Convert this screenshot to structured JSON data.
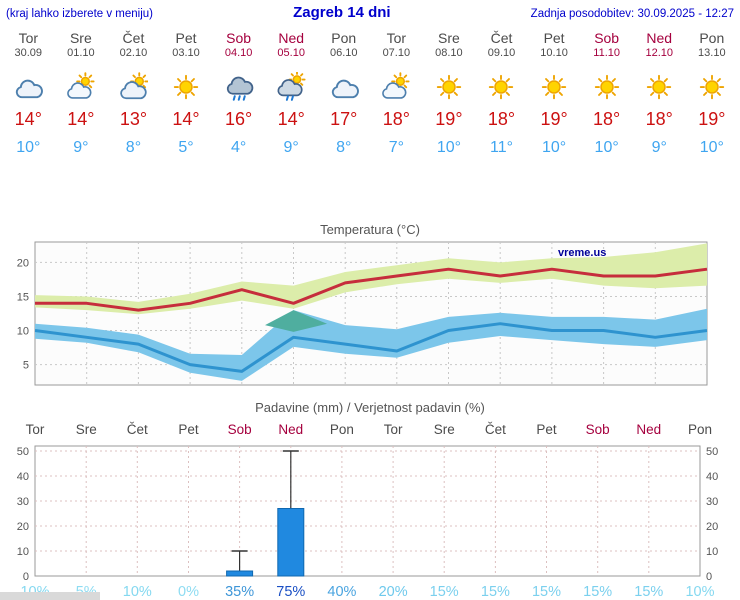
{
  "header": {
    "left_note": "(kraj lahko izberete v meniju)",
    "title": "Zagreb 14 dni",
    "last_update": "Zadnja posodobitev: 30.09.2025 - 12:27"
  },
  "colors": {
    "header_text": "#0000cc",
    "weekday_text": "#4b4b4b",
    "weekend_text": "#a5003e",
    "tmax_text": "#cc1111",
    "tmin_text": "#3fa5f0",
    "chart_title": "#555555",
    "grid": "#c8c8c8",
    "precip_grid": "#dcc0c0",
    "band_max": "#dcedaa",
    "band_min": "#7cc6ea",
    "line_max": "#c62d3c",
    "line_min": "#2e93cf",
    "overlap": "#4fae9f",
    "bar": "#2089e0",
    "bar_edge": "#1068b0",
    "whisker": "#333333",
    "watermark": "#000099"
  },
  "days": [
    {
      "name": "Tor",
      "date": "30.09",
      "weekend": false,
      "icon": "cloudy",
      "tmax": "14°",
      "tmin": "10°"
    },
    {
      "name": "Sre",
      "date": "01.10",
      "weekend": false,
      "icon": "partly",
      "tmax": "14°",
      "tmin": "9°"
    },
    {
      "name": "Čet",
      "date": "02.10",
      "weekend": false,
      "icon": "mostly",
      "tmax": "13°",
      "tmin": "8°"
    },
    {
      "name": "Pet",
      "date": "03.10",
      "weekend": false,
      "icon": "sunny",
      "tmax": "14°",
      "tmin": "5°"
    },
    {
      "name": "Sob",
      "date": "04.10",
      "weekend": true,
      "icon": "rain",
      "tmax": "16°",
      "tmin": "4°"
    },
    {
      "name": "Ned",
      "date": "05.10",
      "weekend": true,
      "icon": "showers",
      "tmax": "14°",
      "tmin": "9°"
    },
    {
      "name": "Pon",
      "date": "06.10",
      "weekend": false,
      "icon": "cloudy",
      "tmax": "17°",
      "tmin": "8°"
    },
    {
      "name": "Tor",
      "date": "07.10",
      "weekend": false,
      "icon": "partly",
      "tmax": "18°",
      "tmin": "7°"
    },
    {
      "name": "Sre",
      "date": "08.10",
      "weekend": false,
      "icon": "sunny",
      "tmax": "19°",
      "tmin": "10°"
    },
    {
      "name": "Čet",
      "date": "09.10",
      "weekend": false,
      "icon": "sunny",
      "tmax": "18°",
      "tmin": "11°"
    },
    {
      "name": "Pet",
      "date": "10.10",
      "weekend": false,
      "icon": "sunny",
      "tmax": "19°",
      "tmin": "10°"
    },
    {
      "name": "Sob",
      "date": "11.10",
      "weekend": true,
      "icon": "sunny",
      "tmax": "18°",
      "tmin": "10°"
    },
    {
      "name": "Ned",
      "date": "12.10",
      "weekend": true,
      "icon": "sunny",
      "tmax": "18°",
      "tmin": "9°"
    },
    {
      "name": "Pon",
      "date": "13.10",
      "weekend": false,
      "icon": "sunny",
      "tmax": "19°",
      "tmin": "10°"
    }
  ],
  "chart_data": [
    {
      "type": "line",
      "title": "Temperatura (°C)",
      "watermark": "vreme.us",
      "x_labels": [
        "Tor",
        "Sre",
        "Čet",
        "Pet",
        "Sob",
        "Ned",
        "Pon",
        "Tor",
        "Sre",
        "Čet",
        "Pet",
        "Sob",
        "Ned",
        "Pon"
      ],
      "ylim": [
        2,
        23
      ],
      "yticks": [
        5,
        10,
        15,
        20
      ],
      "series": [
        {
          "name": "max temperature",
          "values": [
            14,
            14,
            13,
            14,
            16,
            14,
            17,
            18,
            19,
            18,
            19,
            18,
            18,
            19
          ]
        },
        {
          "name": "min temperature",
          "values": [
            10,
            9,
            8,
            5,
            4,
            9,
            8,
            7,
            10,
            11,
            10,
            10,
            9,
            10
          ]
        }
      ],
      "bands": [
        {
          "name": "max-range",
          "hi": [
            15.2,
            15.0,
            14.2,
            15.4,
            17.2,
            16.6,
            18.6,
            19.6,
            20.6,
            20.0,
            20.6,
            20.8,
            21.5,
            22.8
          ],
          "lo": [
            13.4,
            13.0,
            12.4,
            13.2,
            14.4,
            13.2,
            15.6,
            16.8,
            17.6,
            17.0,
            17.6,
            16.6,
            16.2,
            16.6
          ]
        },
        {
          "name": "min-range",
          "hi": [
            11.0,
            10.4,
            9.4,
            6.6,
            6.4,
            13.0,
            10.8,
            10.2,
            12.0,
            12.6,
            12.0,
            12.0,
            11.6,
            13.2
          ],
          "lo": [
            8.8,
            8.2,
            6.8,
            3.8,
            2.6,
            7.6,
            6.6,
            6.0,
            8.2,
            9.2,
            8.6,
            8.0,
            7.6,
            8.6
          ]
        }
      ],
      "overlay": {
        "name": "range-overlap",
        "points": [
          [
            4.45,
            10.8
          ],
          [
            5.0,
            13.0
          ],
          [
            5.65,
            11.0
          ],
          [
            5.0,
            9.8
          ]
        ]
      }
    },
    {
      "type": "bar",
      "title": "Padavine (mm) / Verjetnost padavin (%)",
      "x_labels": [
        "Tor",
        "Sre",
        "Čet",
        "Pet",
        "Sob",
        "Ned",
        "Pon",
        "Tor",
        "Sre",
        "Čet",
        "Pet",
        "Sob",
        "Ned",
        "Pon"
      ],
      "weekend_days": [
        4,
        5,
        11,
        12
      ],
      "ylim": [
        0,
        52
      ],
      "yticks": [
        0,
        10,
        20,
        30,
        40,
        50
      ],
      "values": [
        0,
        0,
        0,
        0,
        2,
        27,
        0,
        0,
        0,
        0,
        0,
        0,
        0,
        0
      ],
      "whisker_hi": [
        0,
        0,
        0,
        0,
        10,
        50,
        0,
        0,
        0,
        0,
        0,
        0,
        0,
        0
      ],
      "probabilities": [
        {
          "label": "10%",
          "color": "#84d8f0"
        },
        {
          "label": "5%",
          "color": "#8edcf2"
        },
        {
          "label": "10%",
          "color": "#84d8f0"
        },
        {
          "label": "0%",
          "color": "#8edcf2"
        },
        {
          "label": "35%",
          "color": "#3e96d8"
        },
        {
          "label": "75%",
          "color": "#1a4fc4"
        },
        {
          "label": "40%",
          "color": "#4aa4e0"
        },
        {
          "label": "20%",
          "color": "#6ec9ec"
        },
        {
          "label": "15%",
          "color": "#7bd0ee"
        },
        {
          "label": "15%",
          "color": "#7bd0ee"
        },
        {
          "label": "15%",
          "color": "#7bd0ee"
        },
        {
          "label": "15%",
          "color": "#7bd0ee"
        },
        {
          "label": "15%",
          "color": "#7bd0ee"
        },
        {
          "label": "10%",
          "color": "#84d8f0"
        }
      ]
    }
  ]
}
